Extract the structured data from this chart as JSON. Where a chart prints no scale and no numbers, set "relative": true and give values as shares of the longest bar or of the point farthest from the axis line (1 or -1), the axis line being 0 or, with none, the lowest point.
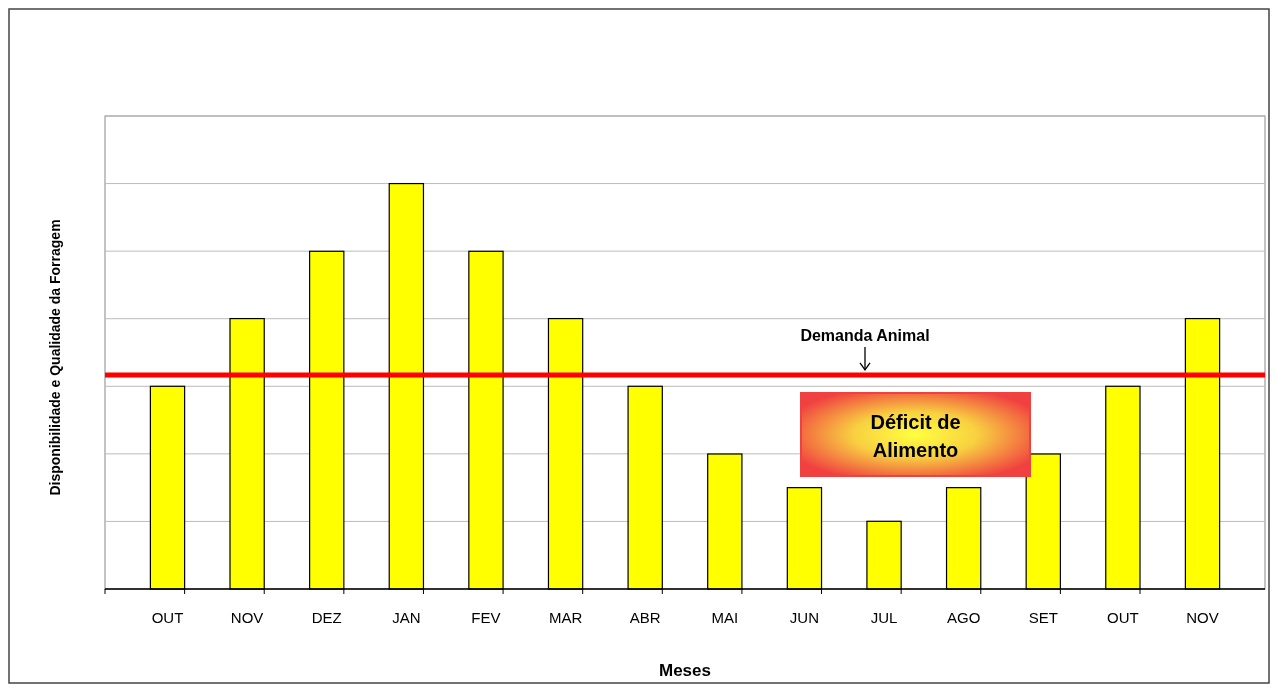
{
  "chart_data": {
    "type": "bar",
    "relative": true,
    "xlabel": "Meses",
    "ylabel": "Disponibilidade e Qualidade da Forragem",
    "categories": [
      "OUT",
      "NOV",
      "DEZ",
      "JAN",
      "FEV",
      "MAR",
      "ABR",
      "MAI",
      "JUN",
      "JUL",
      "AGO",
      "SET",
      "OUT",
      "NOV"
    ],
    "values": [
      0.5,
      0.667,
      0.833,
      1,
      0.833,
      0.667,
      0.5,
      0.333,
      0.25,
      0.167,
      0.25,
      0.333,
      0.5,
      0.667
    ],
    "color": "#ffff00",
    "ref_lines": [
      {
        "axis": "y",
        "value": 0.528,
        "label": "Demanda Animal",
        "color": "#ff0000"
      }
    ],
    "annotations": [
      "Déficit de Alimento"
    ],
    "grid": "y"
  }
}
